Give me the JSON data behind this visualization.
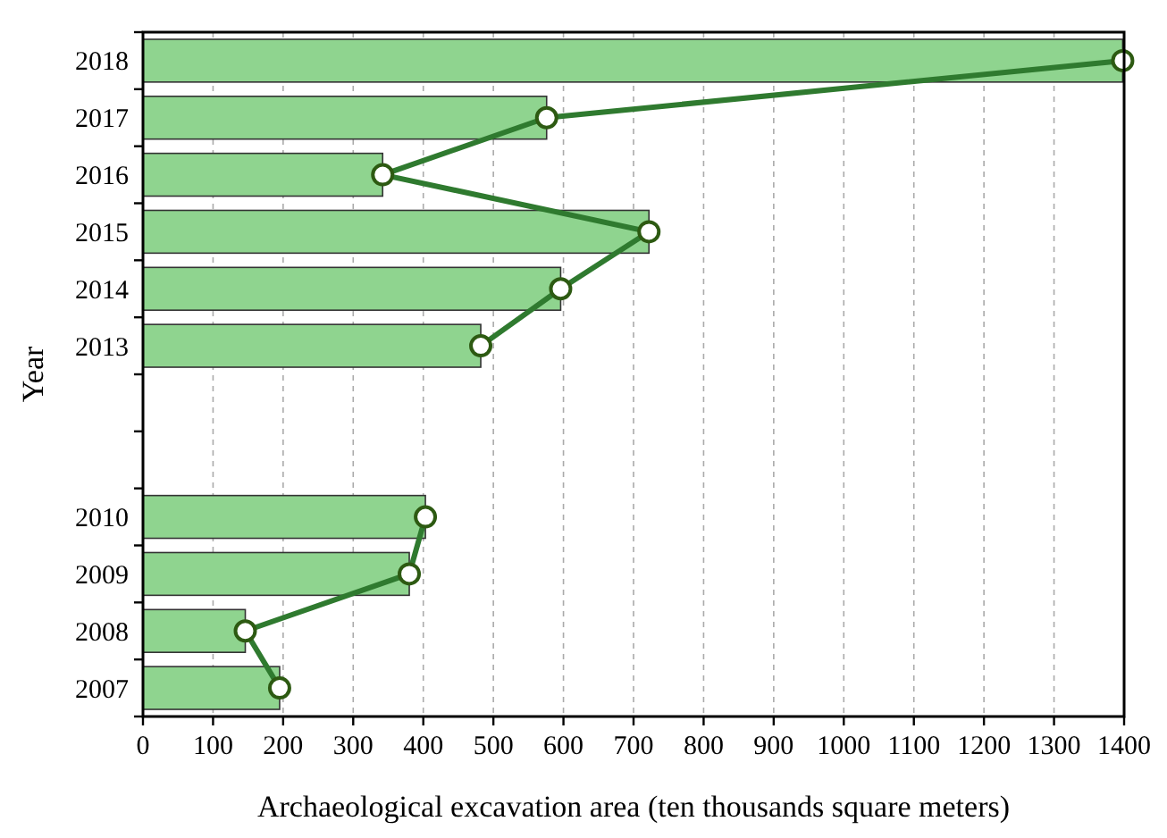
{
  "chart_data": {
    "type": "bar",
    "orientation": "horizontal",
    "xlabel": "Archaeological excavation area (ten thousands square meters)",
    "ylabel": "Year",
    "categories": [
      "2018",
      "2017",
      "2016",
      "2015",
      "2014",
      "2013",
      null,
      null,
      "2010",
      "2009",
      "2008",
      "2007"
    ],
    "series": [
      {
        "color": "#8fd48f",
        "values": [
          1398,
          576,
          342,
          722,
          596,
          482,
          null,
          null,
          403,
          380,
          146,
          195
        ]
      },
      {
        "type": "line",
        "color": "#2f7a2f",
        "marker": "circle",
        "values": [
          1398,
          576,
          342,
          722,
          596,
          482,
          null,
          null,
          403,
          380,
          146,
          195
        ]
      }
    ],
    "xlim": [
      0,
      1400
    ],
    "xticks": [
      0,
      100,
      200,
      300,
      400,
      500,
      600,
      700,
      800,
      900,
      1000,
      1100,
      1200,
      1300,
      1400
    ],
    "grid": "x"
  }
}
